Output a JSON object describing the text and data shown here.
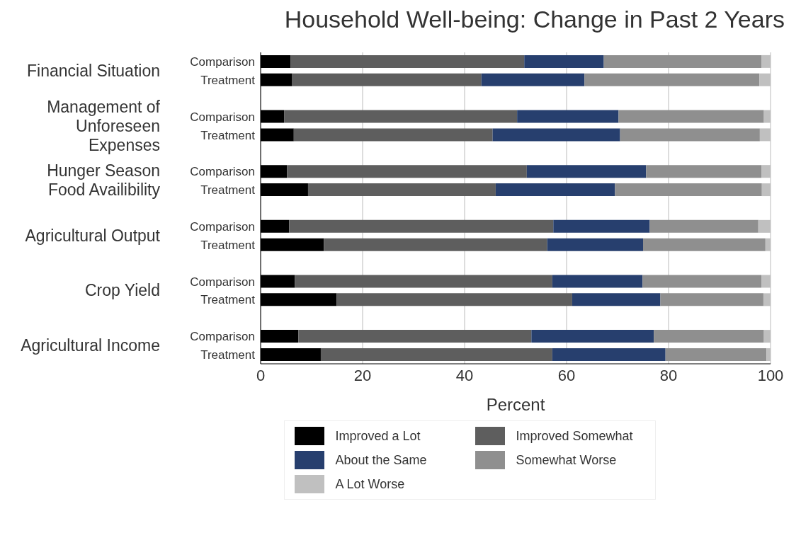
{
  "chart_data": {
    "type": "bar",
    "title": "Household Well-being: Change in Past 2 Years",
    "xlabel": "Percent",
    "orientation": "horizontal",
    "stacked": true,
    "grid": "x",
    "legend": "bottom",
    "categories": [
      "Comparison",
      "Treatment",
      null,
      "Comparison",
      "Treatment",
      null,
      "Comparison",
      "Treatment",
      null,
      "Comparison",
      "Treatment",
      null,
      "Comparison",
      "Treatment",
      null,
      "Comparison",
      "Treatment"
    ],
    "annotations": [
      "Financial Situation",
      "Management of Unforeseen Expenses",
      "Hunger Season Food Availibility",
      "Agricultural Output",
      "Crop Yield",
      "Agricultural Income"
    ],
    "xlim": [
      0,
      100
    ],
    "xticks": [
      0,
      20,
      40,
      60,
      80,
      100
    ],
    "series": [
      {
        "name": "Improved a Lot",
        "color": "#000000",
        "values": [
          5.9,
          6.2,
          null,
          4.6,
          6.5,
          null,
          5.2,
          9.3,
          null,
          5.6,
          12.4,
          null,
          6.7,
          14.9,
          null,
          7.4,
          11.8
        ]
      },
      {
        "name": "Improved Somewhat",
        "color": "#5e5e5e",
        "values": [
          45.8,
          37.1,
          null,
          45.7,
          39.0,
          null,
          47.0,
          36.8,
          null,
          51.8,
          43.8,
          null,
          50.5,
          46.2,
          null,
          45.7,
          45.4
        ]
      },
      {
        "name": "About the Same",
        "color": "#273f6e",
        "values": [
          15.6,
          20.2,
          null,
          19.9,
          25.0,
          null,
          23.4,
          23.4,
          null,
          18.9,
          18.8,
          null,
          17.7,
          17.3,
          null,
          24.0,
          22.2
        ]
      },
      {
        "name": "Somewhat Worse",
        "color": "#8f8f8f",
        "values": [
          30.9,
          34.3,
          null,
          28.5,
          27.4,
          null,
          22.6,
          28.8,
          null,
          21.3,
          24.0,
          null,
          23.3,
          20.2,
          null,
          21.6,
          19.8
        ]
      },
      {
        "name": "A Lot Worse",
        "color": "#c0c0c0",
        "values": [
          1.8,
          2.2,
          null,
          1.3,
          2.1,
          null,
          1.8,
          1.7,
          null,
          2.4,
          1.0,
          null,
          1.8,
          1.4,
          null,
          1.3,
          0.8
        ]
      }
    ]
  }
}
